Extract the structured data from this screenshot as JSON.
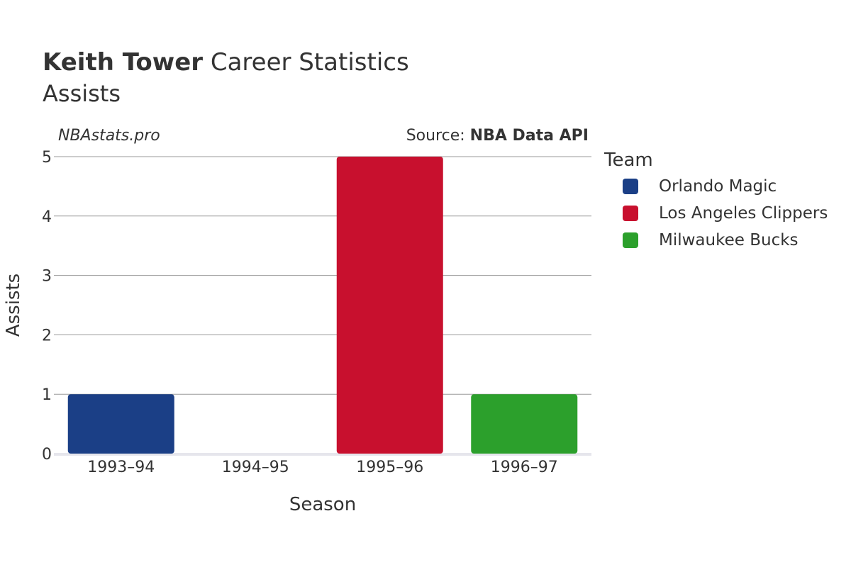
{
  "header": {
    "title_bold": "Keith Tower",
    "title_rest": "Career Statistics",
    "subtitle": "Assists",
    "watermark": "NBAstats.pro",
    "source_prefix": "Source: ",
    "source_name": "NBA Data API"
  },
  "legend": {
    "title": "Team",
    "items": [
      {
        "label": "Orlando Magic",
        "color": "#1b3f86"
      },
      {
        "label": "Los Angeles Clippers",
        "color": "#c8102e"
      },
      {
        "label": "Milwaukee Bucks",
        "color": "#2ca02c"
      }
    ]
  },
  "chart_data": {
    "type": "bar",
    "title": "Keith Tower Career Statistics",
    "subtitle": "Assists",
    "xlabel": "Season",
    "ylabel": "Assists",
    "categories": [
      "1993–94",
      "1994–95",
      "1995–96",
      "1996–97"
    ],
    "values": [
      1,
      0,
      5,
      1
    ],
    "bar_teams": [
      "Orlando Magic",
      "Orlando Magic",
      "Los Angeles Clippers",
      "Milwaukee Bucks"
    ],
    "bar_colors": [
      "#1b3f86",
      "#1b3f86",
      "#c8102e",
      "#2ca02c"
    ],
    "ylim": [
      0,
      5
    ],
    "yticks": [
      0,
      1,
      2,
      3,
      4,
      5
    ],
    "grid": true,
    "legend_position": "right"
  }
}
